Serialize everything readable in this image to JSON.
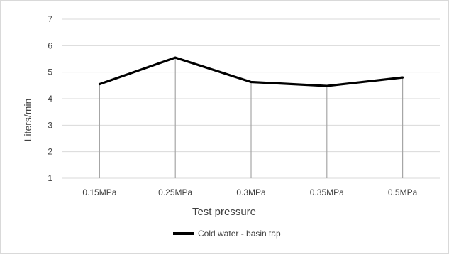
{
  "chart_data": {
    "type": "line",
    "title": "",
    "xlabel": "Test pressure",
    "ylabel": "Liters/min",
    "categories": [
      "0.15MPa",
      "0.25MPa",
      "0.3MPa",
      "0.35MPa",
      "0.5MPa"
    ],
    "yticks": [
      "1",
      "2",
      "3",
      "4",
      "5",
      "6",
      "7"
    ],
    "ylim": [
      1,
      7
    ],
    "grid": true,
    "drop_lines": true,
    "legend_position": "bottom",
    "series": [
      {
        "name": "Cold water - basin tap",
        "values": [
          4.55,
          5.55,
          4.63,
          4.48,
          4.8
        ],
        "color": "#000000"
      }
    ],
    "colors": {
      "gridline": "#d9d9d9",
      "drop_line": "#a6a6a6",
      "text": "#404040"
    }
  }
}
